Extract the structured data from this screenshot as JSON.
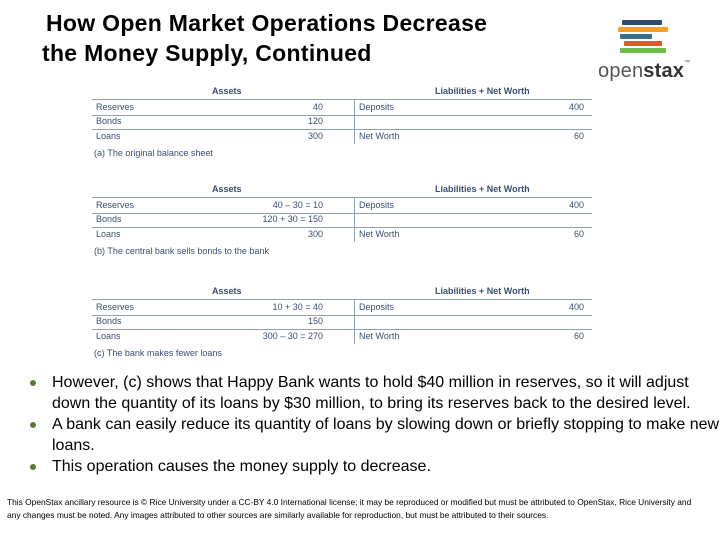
{
  "title": {
    "line1": "How Open Market Operations Decrease",
    "line2": "the Money Supply, Continued"
  },
  "logo": {
    "word_light": "open",
    "word_bold": "stax",
    "trademark": "™",
    "bar_colors": [
      "#2c4a63",
      "#f4a022",
      "#3a6f8a",
      "#e7552b",
      "#6bbd45"
    ]
  },
  "sheets": [
    {
      "assets_header": "Assets",
      "liabilities_header": "Liabilities + Net Worth",
      "rows": [
        {
          "asset": "Reserves",
          "asset_value": "40",
          "liability": "Deposits",
          "liability_value": "400"
        },
        {
          "asset": "Bonds",
          "asset_value": "120",
          "liability": "",
          "liability_value": ""
        },
        {
          "asset": "Loans",
          "asset_value": "300",
          "liability": "Net Worth",
          "liability_value": "60"
        }
      ],
      "caption": "(a) The original balance sheet"
    },
    {
      "assets_header": "Assets",
      "liabilities_header": "Liabilities + Net Worth",
      "rows": [
        {
          "asset": "Reserves",
          "asset_value": "40 – 30 = 10",
          "liability": "Deposits",
          "liability_value": "400"
        },
        {
          "asset": "Bonds",
          "asset_value": "120 + 30 = 150",
          "liability": "",
          "liability_value": ""
        },
        {
          "asset": "Loans",
          "asset_value": "300",
          "liability": "Net Worth",
          "liability_value": "60"
        }
      ],
      "caption": "(b) The central bank sells bonds to the bank"
    },
    {
      "assets_header": "Assets",
      "liabilities_header": "Liabilities + Net Worth",
      "rows": [
        {
          "asset": "Reserves",
          "asset_value": "10 + 30 = 40",
          "liability": "Deposits",
          "liability_value": "400"
        },
        {
          "asset": "Bonds",
          "asset_value": "150",
          "liability": "",
          "liability_value": ""
        },
        {
          "asset": "Loans",
          "asset_value": "300 – 30 = 270",
          "liability": "Net Worth",
          "liability_value": "60"
        }
      ],
      "caption": "(c) The bank makes fewer loans"
    }
  ],
  "bullets": [
    "However, (c) shows that Happy Bank wants to hold $40 million in reserves, so it will adjust down the quantity of its loans by $30 million, to bring its reserves back to the desired level.",
    "A bank can easily reduce its quantity of loans by slowing down or briefly stopping to make new loans.",
    "This operation causes the money supply to decrease."
  ],
  "footer": "This OpenStax ancillary resource is © Rice University under a CC-BY 4.0 International license; it may be reproduced or modified but must be attributed to OpenStax, Rice University and any changes must be noted.  Any images attributed to other sources are similarly available for reproduction, but must be attributed to their sources."
}
